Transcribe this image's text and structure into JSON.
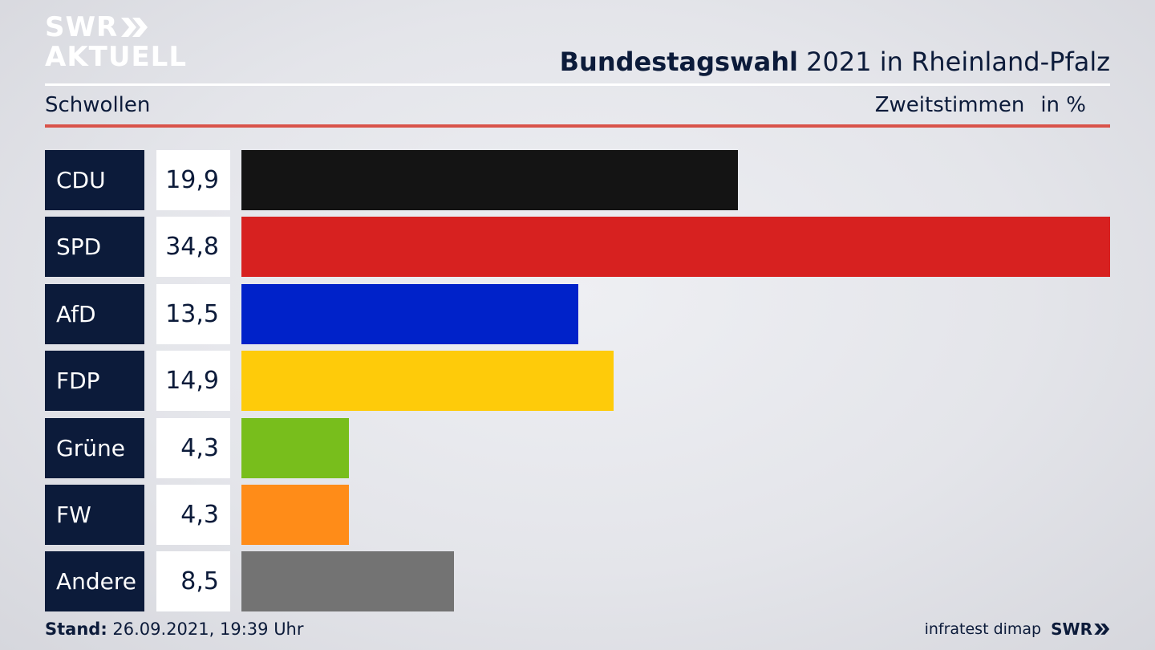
{
  "logo": {
    "line1": "SWR",
    "line2": "AKTUELL"
  },
  "header": {
    "title_bold": "Bundestagswahl",
    "title_rest": "2021 in Rheinland-Pfalz",
    "region": "Schwollen",
    "measure": "Zweitstimmen",
    "unit": "in %"
  },
  "chart_data": {
    "type": "bar",
    "orientation": "horizontal",
    "categories": [
      "CDU",
      "SPD",
      "AfD",
      "FDP",
      "Grüne",
      "FW",
      "Andere"
    ],
    "values": [
      19.9,
      34.8,
      13.5,
      14.9,
      4.3,
      4.3,
      8.5
    ],
    "value_labels": [
      "19,9",
      "34,8",
      "13,5",
      "14,9",
      "4,3",
      "4,3",
      "8,5"
    ],
    "colors": [
      "#141414",
      "#d72120",
      "#0022c9",
      "#fecb0a",
      "#78be1c",
      "#ff8c18",
      "#737373"
    ],
    "xlim": [
      0,
      34.8
    ],
    "grid": false,
    "legend": "none"
  },
  "footer": {
    "stand_label": "Stand:",
    "stand_value": "26.09.2021, 19:39 Uhr",
    "source": "infratest dimap",
    "brand": "SWR"
  },
  "colors": {
    "navy": "#0c1b3a",
    "accent_red": "#d9534a",
    "white": "#ffffff"
  }
}
